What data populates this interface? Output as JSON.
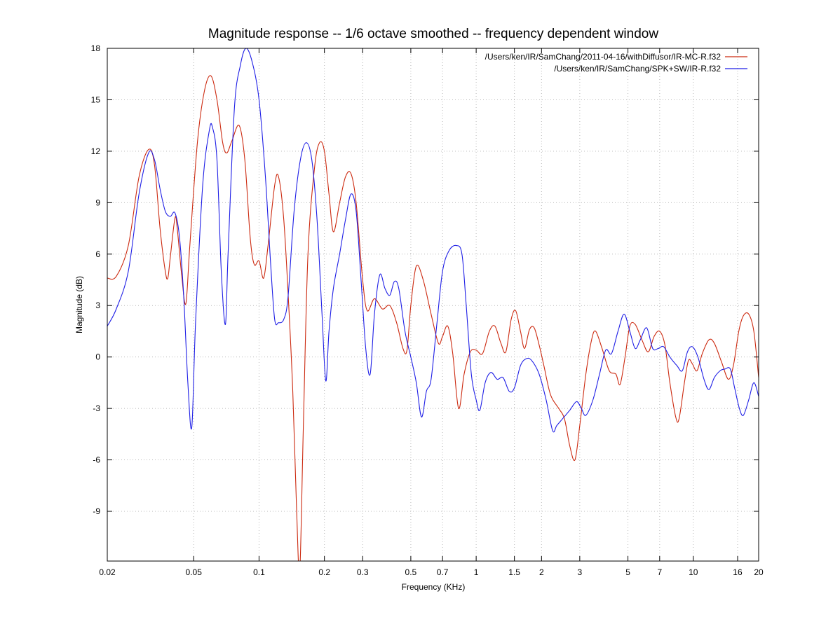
{
  "chart_data": {
    "type": "line",
    "title": "Magnitude response -- 1/6 octave smoothed -- frequency dependent window",
    "xlabel": "Frequency (KHz)",
    "ylabel": "Magnitude (dB)",
    "xscale": "log",
    "xlim": [
      0.02,
      20
    ],
    "ylim": [
      -11.9,
      18
    ],
    "grid": true,
    "legend_position": "top-right",
    "x_ticks": [
      0.02,
      0.05,
      0.1,
      0.2,
      0.3,
      0.5,
      0.7,
      1,
      1.5,
      2,
      3,
      5,
      7,
      10,
      16,
      20
    ],
    "x_tick_labels": [
      "0.02",
      "0.05",
      "0.1",
      "0.2",
      "0.3",
      "0.5",
      "0.7",
      "1",
      "1.5",
      "2",
      "3",
      "5",
      "7",
      "10",
      "16",
      "20"
    ],
    "y_ticks": [
      -9,
      -6,
      -3,
      0,
      3,
      6,
      9,
      12,
      15,
      18
    ],
    "y_tick_labels": [
      "-9",
      "-6",
      "-3",
      "0",
      "3",
      "6",
      "9",
      "12",
      "15",
      "18"
    ],
    "series": [
      {
        "name": "/Users/ken/IR/SamChang/2011-04-16/withDiffusor/IR-MC-R.f32",
        "color": "#cc2a10",
        "points": [
          [
            0.02,
            4.6
          ],
          [
            0.022,
            4.7
          ],
          [
            0.025,
            6.5
          ],
          [
            0.028,
            10.5
          ],
          [
            0.031,
            12.1
          ],
          [
            0.033,
            11.2
          ],
          [
            0.035,
            7.5
          ],
          [
            0.037,
            5.0
          ],
          [
            0.038,
            4.6
          ],
          [
            0.039,
            5.8
          ],
          [
            0.041,
            8.1
          ],
          [
            0.042,
            7.5
          ],
          [
            0.044,
            4.8
          ],
          [
            0.046,
            3.1
          ],
          [
            0.048,
            6.5
          ],
          [
            0.052,
            12.5
          ],
          [
            0.056,
            15.5
          ],
          [
            0.06,
            16.4
          ],
          [
            0.064,
            15.0
          ],
          [
            0.068,
            12.5
          ],
          [
            0.071,
            11.9
          ],
          [
            0.075,
            12.6
          ],
          [
            0.081,
            13.5
          ],
          [
            0.086,
            11.5
          ],
          [
            0.091,
            7.0
          ],
          [
            0.095,
            5.4
          ],
          [
            0.1,
            5.6
          ],
          [
            0.105,
            4.6
          ],
          [
            0.11,
            6.5
          ],
          [
            0.118,
            10.0
          ],
          [
            0.123,
            10.5
          ],
          [
            0.13,
            8.0
          ],
          [
            0.137,
            3.0
          ],
          [
            0.143,
            -2.0
          ],
          [
            0.149,
            -9.0
          ],
          [
            0.154,
            -12.5
          ],
          [
            0.16,
            -4.0
          ],
          [
            0.168,
            6.0
          ],
          [
            0.18,
            11.0
          ],
          [
            0.19,
            12.5
          ],
          [
            0.2,
            12.0
          ],
          [
            0.21,
            9.5
          ],
          [
            0.22,
            7.3
          ],
          [
            0.235,
            9.0
          ],
          [
            0.25,
            10.5
          ],
          [
            0.265,
            10.7
          ],
          [
            0.28,
            9.0
          ],
          [
            0.3,
            4.5
          ],
          [
            0.315,
            2.7
          ],
          [
            0.34,
            3.4
          ],
          [
            0.37,
            2.8
          ],
          [
            0.4,
            3.0
          ],
          [
            0.43,
            2.0
          ],
          [
            0.46,
            0.5
          ],
          [
            0.48,
            0.4
          ],
          [
            0.5,
            3.0
          ],
          [
            0.53,
            5.3
          ],
          [
            0.57,
            4.5
          ],
          [
            0.62,
            2.5
          ],
          [
            0.67,
            0.8
          ],
          [
            0.7,
            1.2
          ],
          [
            0.74,
            1.8
          ],
          [
            0.78,
            0.2
          ],
          [
            0.83,
            -3.0
          ],
          [
            0.88,
            -1.0
          ],
          [
            0.94,
            0.3
          ],
          [
            1.0,
            0.4
          ],
          [
            1.07,
            0.2
          ],
          [
            1.15,
            1.5
          ],
          [
            1.22,
            1.8
          ],
          [
            1.3,
            0.8
          ],
          [
            1.37,
            0.3
          ],
          [
            1.45,
            2.2
          ],
          [
            1.52,
            2.7
          ],
          [
            1.6,
            1.5
          ],
          [
            1.67,
            0.5
          ],
          [
            1.76,
            1.6
          ],
          [
            1.85,
            1.7
          ],
          [
            1.95,
            0.7
          ],
          [
            2.05,
            -0.5
          ],
          [
            2.2,
            -2.2
          ],
          [
            2.4,
            -3.0
          ],
          [
            2.55,
            -3.6
          ],
          [
            2.7,
            -5.2
          ],
          [
            2.85,
            -6.0
          ],
          [
            3.0,
            -4.0
          ],
          [
            3.2,
            -1.0
          ],
          [
            3.4,
            1.0
          ],
          [
            3.55,
            1.5
          ],
          [
            3.8,
            0.5
          ],
          [
            4.1,
            -0.8
          ],
          [
            4.4,
            -1.0
          ],
          [
            4.6,
            -1.6
          ],
          [
            4.85,
            0.0
          ],
          [
            5.1,
            1.8
          ],
          [
            5.4,
            1.9
          ],
          [
            5.8,
            1.0
          ],
          [
            6.2,
            0.3
          ],
          [
            6.6,
            1.2
          ],
          [
            7.0,
            1.5
          ],
          [
            7.4,
            0.7
          ],
          [
            7.8,
            -1.5
          ],
          [
            8.3,
            -3.5
          ],
          [
            8.6,
            -3.6
          ],
          [
            9.1,
            -1.5
          ],
          [
            9.5,
            -0.2
          ],
          [
            9.9,
            -0.4
          ],
          [
            10.4,
            -0.8
          ],
          [
            11.0,
            0.2
          ],
          [
            11.8,
            1.0
          ],
          [
            12.5,
            0.8
          ],
          [
            13.5,
            -0.3
          ],
          [
            14.5,
            -1.3
          ],
          [
            15.3,
            -0.5
          ],
          [
            16.2,
            1.5
          ],
          [
            17.0,
            2.4
          ],
          [
            18.0,
            2.5
          ],
          [
            19.0,
            1.5
          ],
          [
            20.0,
            -1.2
          ]
        ]
      },
      {
        "name": "/Users/ken/IR/SamChang/SPK+SW/IR-R.f32",
        "color": "#1f1fe6",
        "points": [
          [
            0.02,
            1.8
          ],
          [
            0.022,
            2.8
          ],
          [
            0.025,
            5.0
          ],
          [
            0.028,
            9.5
          ],
          [
            0.031,
            11.9
          ],
          [
            0.033,
            11.5
          ],
          [
            0.035,
            9.8
          ],
          [
            0.037,
            8.5
          ],
          [
            0.039,
            8.2
          ],
          [
            0.041,
            8.4
          ],
          [
            0.043,
            7.0
          ],
          [
            0.045,
            3.5
          ],
          [
            0.047,
            -1.5
          ],
          [
            0.049,
            -4.1
          ],
          [
            0.051,
            2.0
          ],
          [
            0.055,
            10.0
          ],
          [
            0.059,
            13.2
          ],
          [
            0.061,
            13.4
          ],
          [
            0.064,
            11.5
          ],
          [
            0.067,
            5.0
          ],
          [
            0.07,
            1.9
          ],
          [
            0.072,
            6.0
          ],
          [
            0.077,
            14.5
          ],
          [
            0.082,
            17.0
          ],
          [
            0.087,
            18.0
          ],
          [
            0.093,
            17.2
          ],
          [
            0.1,
            15.0
          ],
          [
            0.107,
            10.5
          ],
          [
            0.113,
            5.5
          ],
          [
            0.118,
            2.2
          ],
          [
            0.123,
            2.0
          ],
          [
            0.13,
            2.2
          ],
          [
            0.136,
            3.5
          ],
          [
            0.145,
            8.5
          ],
          [
            0.155,
            11.5
          ],
          [
            0.165,
            12.5
          ],
          [
            0.175,
            11.5
          ],
          [
            0.185,
            8.0
          ],
          [
            0.195,
            2.5
          ],
          [
            0.203,
            -1.4
          ],
          [
            0.21,
            1.5
          ],
          [
            0.22,
            4.0
          ],
          [
            0.235,
            6.0
          ],
          [
            0.25,
            8.0
          ],
          [
            0.265,
            9.5
          ],
          [
            0.28,
            8.5
          ],
          [
            0.295,
            4.5
          ],
          [
            0.31,
            0.5
          ],
          [
            0.325,
            -1.0
          ],
          [
            0.34,
            2.5
          ],
          [
            0.36,
            4.8
          ],
          [
            0.38,
            4.0
          ],
          [
            0.4,
            3.6
          ],
          [
            0.42,
            4.4
          ],
          [
            0.44,
            4.0
          ],
          [
            0.47,
            1.5
          ],
          [
            0.5,
            0.0
          ],
          [
            0.53,
            -1.5
          ],
          [
            0.56,
            -3.5
          ],
          [
            0.59,
            -2.0
          ],
          [
            0.62,
            -1.3
          ],
          [
            0.66,
            2.0
          ],
          [
            0.7,
            5.0
          ],
          [
            0.75,
            6.2
          ],
          [
            0.81,
            6.5
          ],
          [
            0.86,
            6.0
          ],
          [
            0.9,
            3.0
          ],
          [
            0.95,
            -1.0
          ],
          [
            1.0,
            -2.5
          ],
          [
            1.04,
            -3.1
          ],
          [
            1.1,
            -1.5
          ],
          [
            1.17,
            -0.9
          ],
          [
            1.25,
            -1.3
          ],
          [
            1.33,
            -1.2
          ],
          [
            1.42,
            -2.0
          ],
          [
            1.5,
            -1.8
          ],
          [
            1.6,
            -0.5
          ],
          [
            1.7,
            -0.1
          ],
          [
            1.8,
            -0.2
          ],
          [
            1.95,
            -1.0
          ],
          [
            2.1,
            -2.5
          ],
          [
            2.25,
            -4.3
          ],
          [
            2.35,
            -4.0
          ],
          [
            2.5,
            -3.6
          ],
          [
            2.7,
            -3.1
          ],
          [
            2.9,
            -2.6
          ],
          [
            3.05,
            -3.0
          ],
          [
            3.2,
            -3.4
          ],
          [
            3.45,
            -2.5
          ],
          [
            3.7,
            -1.0
          ],
          [
            3.95,
            0.4
          ],
          [
            4.2,
            0.2
          ],
          [
            4.5,
            1.5
          ],
          [
            4.8,
            2.5
          ],
          [
            5.1,
            1.5
          ],
          [
            5.4,
            0.5
          ],
          [
            5.7,
            1.0
          ],
          [
            6.1,
            1.7
          ],
          [
            6.5,
            0.5
          ],
          [
            6.9,
            0.5
          ],
          [
            7.3,
            0.6
          ],
          [
            7.8,
            0.0
          ],
          [
            8.4,
            -0.5
          ],
          [
            8.9,
            -0.8
          ],
          [
            9.4,
            0.3
          ],
          [
            9.9,
            0.6
          ],
          [
            10.5,
            0.0
          ],
          [
            11.2,
            -1.3
          ],
          [
            11.8,
            -1.9
          ],
          [
            12.5,
            -1.2
          ],
          [
            13.3,
            -0.8
          ],
          [
            14.0,
            -0.7
          ],
          [
            14.8,
            -0.7
          ],
          [
            15.5,
            -1.8
          ],
          [
            16.3,
            -3.0
          ],
          [
            17.0,
            -3.4
          ],
          [
            18.0,
            -2.5
          ],
          [
            19.0,
            -1.5
          ],
          [
            20.0,
            -2.3
          ]
        ]
      }
    ]
  }
}
